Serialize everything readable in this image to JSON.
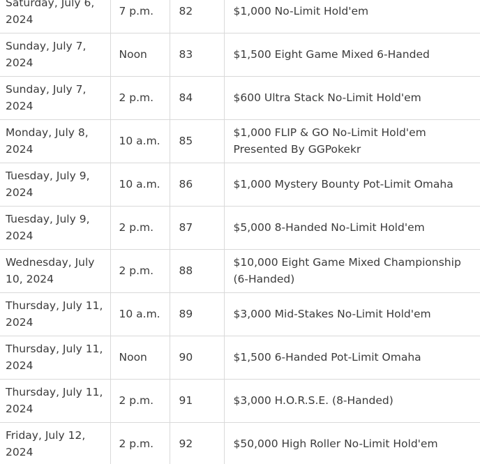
{
  "schedule": {
    "rows": [
      {
        "date": "Saturday, July 6, 2024",
        "time": "7 p.m.",
        "event": "82",
        "name": "$1,000 No-Limit Hold'em"
      },
      {
        "date": "Sunday, July 7, 2024",
        "time": "Noon",
        "event": "83",
        "name": "$1,500 Eight Game Mixed 6-Handed"
      },
      {
        "date": "Sunday, July 7, 2024",
        "time": "2 p.m.",
        "event": "84",
        "name": "$600 Ultra Stack No-Limit Hold'em"
      },
      {
        "date": "Monday, July 8, 2024",
        "time": "10 a.m.",
        "event": "85",
        "name": "$1,000 FLIP & GO No-Limit Hold'em Presented By GGPokekr"
      },
      {
        "date": "Tuesday, July 9, 2024",
        "time": "10 a.m.",
        "event": "86",
        "name": "$1,000 Mystery Bounty Pot-Limit Omaha"
      },
      {
        "date": "Tuesday, July 9, 2024",
        "time": "2 p.m.",
        "event": "87",
        "name": "$5,000 8-Handed No-Limit Hold'em"
      },
      {
        "date": "Wednesday, July 10, 2024",
        "time": "2 p.m.",
        "event": "88",
        "name": "$10,000 Eight Game Mixed Championship (6-Handed)"
      },
      {
        "date": "Thursday, July 11, 2024",
        "time": "10 a.m.",
        "event": "89",
        "name": "$3,000 Mid-Stakes No-Limit Hold'em"
      },
      {
        "date": "Thursday, July 11, 2024",
        "time": "Noon",
        "event": "90",
        "name": "$1,500 6-Handed Pot-Limit Omaha"
      },
      {
        "date": "Thursday, July 11, 2024",
        "time": "2 p.m.",
        "event": "91",
        "name": "$3,000 H.O.R.S.E. (8-Handed)"
      },
      {
        "date": "Friday, July 12, 2024",
        "time": "2 p.m.",
        "event": "92",
        "name": "$50,000 High Roller No-Limit Hold'em"
      }
    ]
  }
}
